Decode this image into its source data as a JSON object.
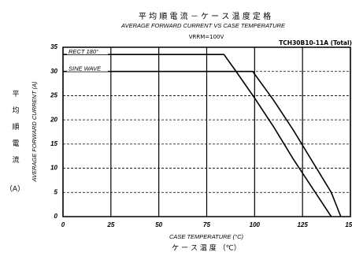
{
  "chart_data": {
    "type": "line",
    "title": "平 均 順 電 流 － ケ ー ス 温 度 定 格",
    "subtitle": "AVERAGE FORWARD CURRENT VS CASE TEMPERATURE",
    "condition": "VRRM=100V",
    "model": "TCH30B10-11A (Total)",
    "ylabel": "AVERAGE FORWARD CURRENT (A)",
    "ylabel_jp": "平均順電流",
    "ylabel_unit": "（A）",
    "xlabel": "CASE TEMPERATURE (°C)",
    "xlabel_jp": "ケ ー ス 温 度 （℃）",
    "xlim": [
      0,
      150
    ],
    "ylim": [
      0,
      35
    ],
    "xticks": [
      0,
      25,
      50,
      75,
      100,
      125,
      150
    ],
    "yticks": [
      0,
      5,
      10,
      15,
      20,
      25,
      30,
      35
    ],
    "grid": true,
    "series": [
      {
        "name": "RECT 180°",
        "color": "#000000",
        "x": [
          0,
          84,
          90,
          100,
          110,
          120,
          130,
          140
        ],
        "values": [
          33.5,
          33.5,
          30.2,
          24.5,
          18.5,
          12,
          6,
          0
        ]
      },
      {
        "name": "SINE WAVE",
        "color": "#000000",
        "x": [
          0,
          99,
          110,
          120,
          130,
          140,
          145
        ],
        "values": [
          30,
          30,
          24,
          18,
          11.5,
          5,
          0
        ]
      }
    ]
  }
}
